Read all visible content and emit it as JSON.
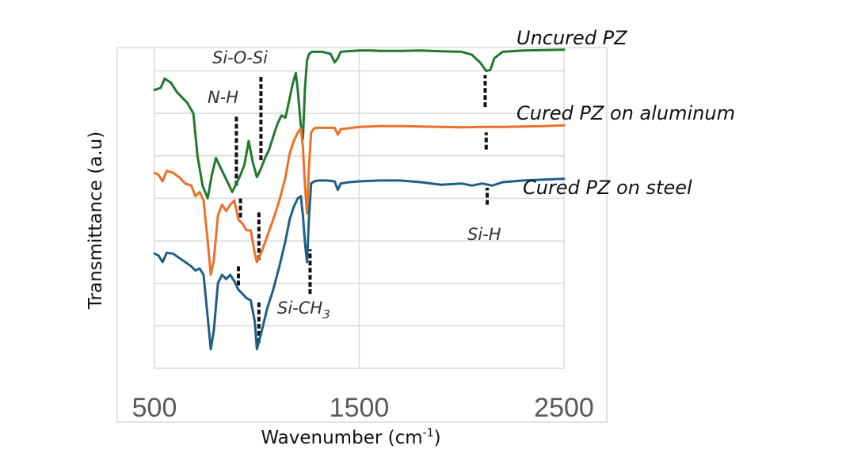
{
  "chart_data": {
    "type": "line",
    "title": "",
    "xlabel": "Wavenumber (cm",
    "xlabel_sup": "-1",
    "xlabel_close": ")",
    "ylabel": "Transmittance (a.u)",
    "xlim": [
      500,
      2500
    ],
    "ylim": [
      0,
      7.55
    ],
    "x_ticks": [
      "500",
      "1500",
      "2500"
    ],
    "x_tick_values": [
      500,
      1500,
      2500
    ],
    "y_grid_values": [
      0,
      1,
      2,
      3,
      4,
      5,
      6,
      7
    ],
    "x_grid_values": [
      500,
      1500,
      2500
    ],
    "grid": true,
    "legend": "inline-right",
    "series": [
      {
        "name": "Uncured PZ",
        "color": "#217a2b",
        "x": [
          500,
          530,
          550,
          580,
          610,
          640,
          660,
          690,
          710,
          735,
          760,
          780,
          800,
          820,
          840,
          860,
          880,
          900,
          920,
          940,
          960,
          980,
          1000,
          1020,
          1040,
          1060,
          1080,
          1100,
          1120,
          1140,
          1160,
          1175,
          1190,
          1200,
          1215,
          1225,
          1235,
          1245,
          1255,
          1270,
          1290,
          1320,
          1360,
          1380,
          1395,
          1410,
          1440,
          1500,
          1560,
          1600,
          1700,
          1800,
          1900,
          2000,
          2050,
          2090,
          2120,
          2140,
          2160,
          2200,
          2300,
          2400,
          2500
        ],
        "y": [
          6.55,
          6.6,
          6.82,
          6.72,
          6.5,
          6.35,
          6.25,
          6.0,
          5.0,
          4.3,
          4.0,
          4.55,
          4.95,
          4.75,
          4.55,
          4.35,
          4.15,
          4.35,
          4.55,
          4.8,
          5.35,
          4.85,
          4.5,
          4.7,
          4.95,
          5.15,
          5.45,
          5.75,
          5.95,
          5.9,
          6.35,
          6.7,
          6.95,
          6.55,
          5.7,
          5.4,
          6.6,
          7.25,
          7.4,
          7.45,
          7.45,
          7.45,
          7.4,
          7.2,
          7.3,
          7.45,
          7.46,
          7.48,
          7.48,
          7.47,
          7.47,
          7.48,
          7.46,
          7.45,
          7.38,
          7.2,
          7.0,
          7.02,
          7.3,
          7.45,
          7.48,
          7.49,
          7.5
        ]
      },
      {
        "name": "Cured PZ on aluminum",
        "color": "#ed7028",
        "x": [
          500,
          520,
          540,
          560,
          590,
          620,
          650,
          680,
          700,
          720,
          740,
          760,
          775,
          790,
          810,
          830,
          850,
          870,
          890,
          910,
          930,
          950,
          970,
          990,
          1000,
          1020,
          1050,
          1080,
          1110,
          1140,
          1160,
          1180,
          1200,
          1215,
          1225,
          1235,
          1245,
          1255,
          1265,
          1280,
          1300,
          1340,
          1380,
          1395,
          1410,
          1450,
          1500,
          1600,
          1700,
          1800,
          1900,
          2000,
          2100,
          2200,
          2300,
          2400,
          2500
        ],
        "y": [
          4.6,
          4.55,
          4.4,
          4.65,
          4.6,
          4.5,
          4.35,
          4.3,
          4.05,
          4.15,
          3.95,
          3.0,
          2.2,
          2.55,
          3.6,
          3.85,
          3.7,
          3.85,
          3.95,
          3.5,
          3.4,
          3.25,
          3.25,
          2.7,
          2.5,
          2.7,
          3.1,
          3.5,
          3.95,
          4.5,
          5.05,
          5.35,
          5.55,
          5.65,
          5.2,
          4.3,
          3.65,
          4.8,
          5.55,
          5.65,
          5.66,
          5.66,
          5.66,
          5.5,
          5.63,
          5.65,
          5.68,
          5.7,
          5.7,
          5.69,
          5.68,
          5.67,
          5.68,
          5.68,
          5.69,
          5.7,
          5.72
        ]
      },
      {
        "name": "Cured PZ on steel",
        "color": "#1e5f86",
        "x": [
          500,
          520,
          540,
          560,
          590,
          620,
          650,
          680,
          700,
          720,
          740,
          760,
          775,
          790,
          810,
          830,
          850,
          870,
          890,
          910,
          930,
          950,
          970,
          990,
          1000,
          1020,
          1050,
          1080,
          1110,
          1140,
          1160,
          1180,
          1200,
          1215,
          1225,
          1235,
          1245,
          1255,
          1265,
          1280,
          1300,
          1340,
          1380,
          1395,
          1410,
          1450,
          1500,
          1600,
          1700,
          1800,
          1900,
          2000,
          2050,
          2100,
          2150,
          2200,
          2300,
          2400,
          2500
        ],
        "y": [
          2.7,
          2.65,
          2.5,
          2.72,
          2.7,
          2.6,
          2.5,
          2.4,
          2.3,
          2.35,
          2.2,
          1.2,
          0.45,
          0.9,
          2.0,
          2.2,
          2.1,
          2.2,
          2.05,
          1.85,
          1.75,
          1.65,
          1.6,
          1.1,
          0.45,
          0.8,
          1.4,
          1.85,
          2.4,
          3.0,
          3.5,
          3.8,
          4.0,
          4.05,
          3.6,
          2.95,
          2.5,
          3.6,
          4.35,
          4.4,
          4.42,
          4.42,
          4.4,
          4.2,
          4.35,
          4.38,
          4.4,
          4.42,
          4.42,
          4.38,
          4.32,
          4.35,
          4.3,
          4.35,
          4.3,
          4.38,
          4.42,
          4.44,
          4.46
        ]
      }
    ],
    "series_labels": [
      {
        "text": "Uncured PZ",
        "series": 0
      },
      {
        "text": "Cured PZ on aluminum",
        "series": 1
      },
      {
        "text": "Cured PZ on steel",
        "series": 2
      }
    ],
    "annotations": [
      {
        "text": "Si-O-Si",
        "sub": ""
      },
      {
        "text": "N-H",
        "sub": ""
      },
      {
        "text": "Si-CH",
        "sub": "3"
      },
      {
        "text": "Si-H",
        "sub": ""
      }
    ],
    "marker_lines": [
      {
        "x": 900,
        "y_from": 4.3,
        "y_to": 5.95
      },
      {
        "x": 1020,
        "y_from": 4.9,
        "y_to": 6.9
      },
      {
        "x": 920,
        "y_from": 3.55,
        "y_to": 4.0
      },
      {
        "x": 1010,
        "y_from": 2.55,
        "y_to": 3.7
      },
      {
        "x": 910,
        "y_from": 1.95,
        "y_to": 2.45
      },
      {
        "x": 1010,
        "y_from": 0.6,
        "y_to": 1.6
      },
      {
        "x": 1260,
        "y_from": 1.75,
        "y_to": 2.8
      },
      {
        "x": 2115,
        "y_from": 6.15,
        "y_to": 6.9
      },
      {
        "x": 2120,
        "y_from": 5.15,
        "y_to": 5.55
      },
      {
        "x": 2125,
        "y_from": 3.85,
        "y_to": 4.25
      }
    ]
  }
}
